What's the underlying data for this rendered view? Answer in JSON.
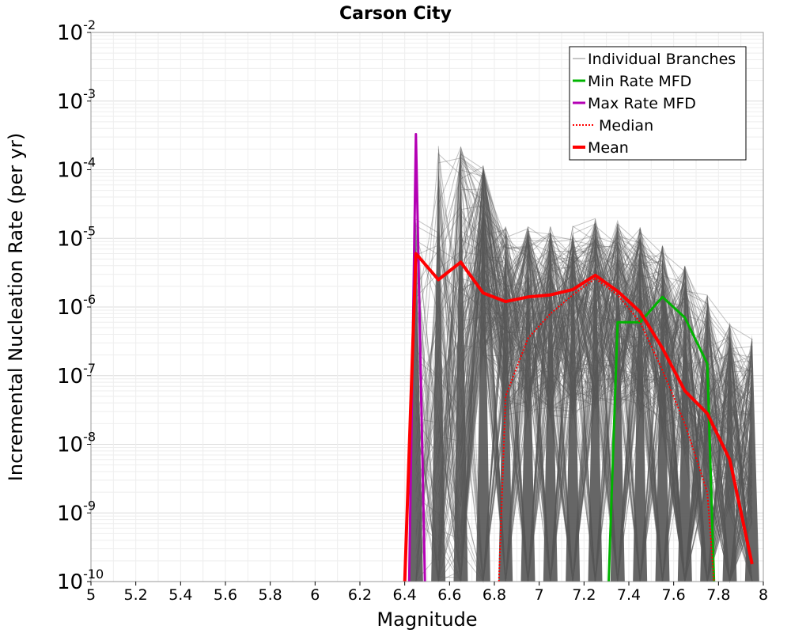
{
  "chart_data": {
    "type": "line",
    "title": "Carson City",
    "xlabel": "Magnitude",
    "ylabel": "Incremental Nucleation Rate (per yr)",
    "xlim": [
      5,
      8
    ],
    "ylim": [
      1e-10,
      0.01
    ],
    "yscale": "log",
    "grid": true,
    "legend_position": "top-right",
    "x_ticks": [
      "5",
      "5.2",
      "5.4",
      "5.6",
      "5.8",
      "6",
      "6.2",
      "6.4",
      "6.6",
      "6.8",
      "7",
      "7.2",
      "7.4",
      "7.6",
      "7.8",
      "8"
    ],
    "y_ticks": [
      {
        "base": "10",
        "exp": "-10"
      },
      {
        "base": "10",
        "exp": "-9"
      },
      {
        "base": "10",
        "exp": "-8"
      },
      {
        "base": "10",
        "exp": "-7"
      },
      {
        "base": "10",
        "exp": "-6"
      },
      {
        "base": "10",
        "exp": "-5"
      },
      {
        "base": "10",
        "exp": "-4"
      },
      {
        "base": "10",
        "exp": "-3"
      },
      {
        "base": "10",
        "exp": "-2"
      }
    ],
    "series": [
      {
        "name": "Individual Branches",
        "color": "#8c8c8c",
        "style": "thin"
      },
      {
        "name": "Min Rate MFD",
        "color": "#00b400",
        "style": "solid",
        "x": [
          7.31,
          7.35,
          7.45,
          7.55,
          7.65,
          7.75,
          7.78
        ],
        "y": [
          1e-10,
          6e-07,
          6e-07,
          1.4e-06,
          7e-07,
          1.5e-07,
          1e-10
        ]
      },
      {
        "name": "Max Rate MFD",
        "color": "#b400b4",
        "style": "solid",
        "x": [
          6.42,
          6.45,
          6.49
        ],
        "y": [
          1e-10,
          0.00033,
          1e-10
        ]
      },
      {
        "name": "Median",
        "color": "#ff0000",
        "style": "dotted",
        "x": [
          6.82,
          6.85,
          6.95,
          7.05,
          7.15,
          7.25,
          7.35,
          7.45,
          7.55,
          7.65,
          7.75,
          7.78
        ],
        "y": [
          1e-10,
          5e-08,
          3.5e-07,
          8e-07,
          1.5e-06,
          2.6e-06,
          1.5e-06,
          6e-07,
          1.2e-07,
          2e-08,
          2e-09,
          1e-10
        ]
      },
      {
        "name": "Mean",
        "color": "#ff0000",
        "style": "thick",
        "x": [
          6.4,
          6.45,
          6.55,
          6.65,
          6.75,
          6.85,
          6.95,
          7.05,
          7.15,
          7.25,
          7.35,
          7.45,
          7.55,
          7.65,
          7.75,
          7.85,
          7.95
        ],
        "y": [
          1e-10,
          6e-06,
          2.5e-06,
          4.5e-06,
          1.6e-06,
          1.2e-06,
          1.4e-06,
          1.5e-06,
          1.8e-06,
          2.9e-06,
          1.7e-06,
          8.5e-07,
          2.5e-07,
          6e-08,
          2.8e-08,
          6e-09,
          1.8e-10
        ]
      }
    ],
    "spike_magnitudes": [
      6.45,
      6.55,
      6.65,
      6.75,
      6.85,
      6.95,
      7.05,
      7.15,
      7.25,
      7.35,
      7.45,
      7.55,
      7.65,
      7.75,
      7.85,
      7.95
    ],
    "spike_peaks": [
      2e-05,
      0.00023,
      0.00023,
      0.00012,
      1.5e-05,
      1.5e-05,
      1.5e-05,
      1.5e-05,
      2e-05,
      1.8e-05,
      1.5e-05,
      8e-06,
      4e-06,
      1.5e-06,
      6e-07,
      4e-07
    ]
  }
}
